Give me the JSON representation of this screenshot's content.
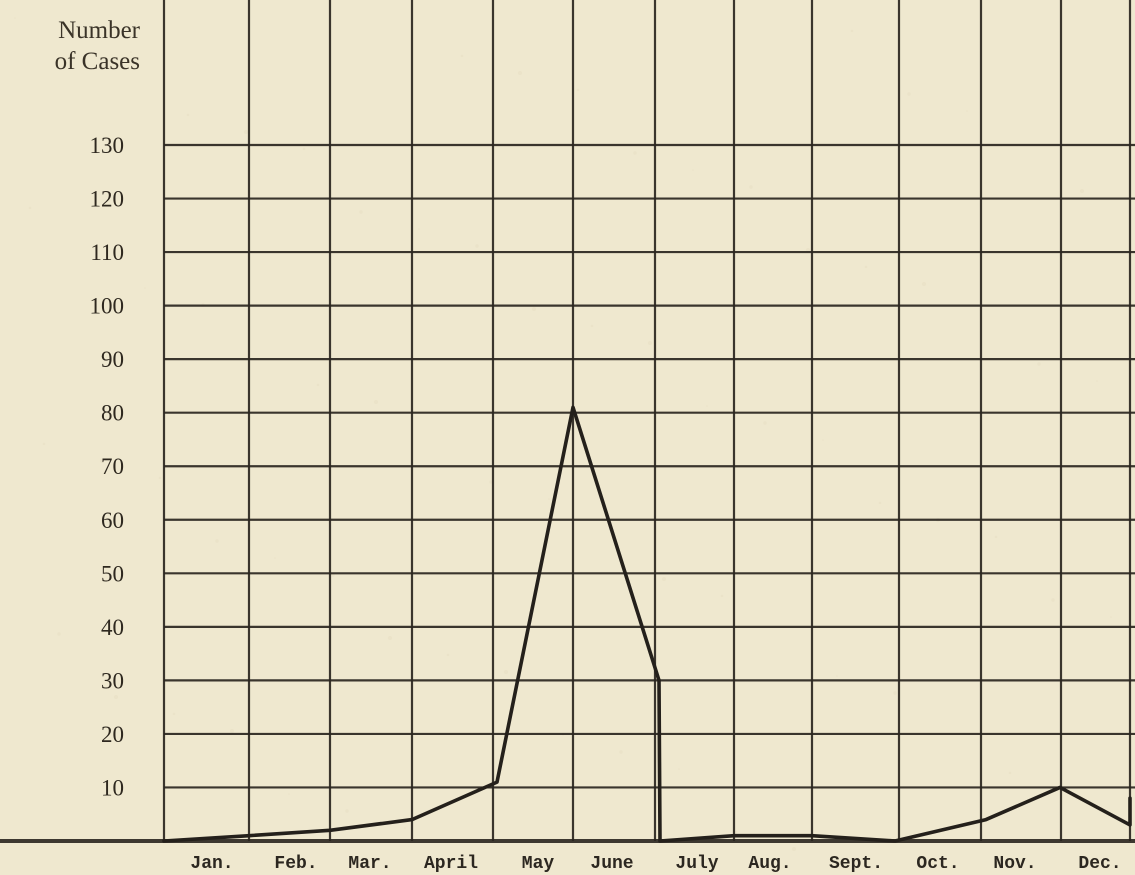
{
  "chart_data": {
    "type": "line",
    "title": "",
    "xlabel": "",
    "ylabel": "Number of Cases",
    "ylabel_lines": [
      "Number",
      "of Cases"
    ],
    "categories": [
      "Jan.",
      "Feb.",
      "Mar.",
      "April",
      "May",
      "June",
      "July",
      "Aug.",
      "Sept.",
      "Oct.",
      "Nov.",
      "Dec."
    ],
    "series": [
      {
        "name": "",
        "points": [
          {
            "x": "Jan.",
            "y": 0
          },
          {
            "x": "Feb.",
            "y": 1
          },
          {
            "x": "Feb.",
            "y": 2
          },
          {
            "x": "Mar.",
            "y": 4
          },
          {
            "x": "April",
            "y": 11
          },
          {
            "x": "May",
            "y": 81
          },
          {
            "x": "June",
            "y": 30
          },
          {
            "x": "June",
            "y": 0
          },
          {
            "x": "July",
            "y": 1
          },
          {
            "x": "Aug.",
            "y": 1
          },
          {
            "x": "Aug.",
            "y": 0
          },
          {
            "x": "Sept.",
            "y": 4
          },
          {
            "x": "Oct.",
            "y": 10
          },
          {
            "x": "Nov.",
            "y": 3
          },
          {
            "x": "Dec.",
            "y": 8
          }
        ]
      }
    ],
    "yticks": [
      10,
      20,
      30,
      40,
      50,
      60,
      70,
      80,
      90,
      100,
      110,
      120,
      130
    ],
    "ylim": [
      0,
      130
    ],
    "grid": true,
    "legend": "none",
    "colors": {
      "background": "#efe8cf",
      "grid": "#2b2620",
      "line": "#24201b",
      "text": "#2e281f"
    }
  }
}
